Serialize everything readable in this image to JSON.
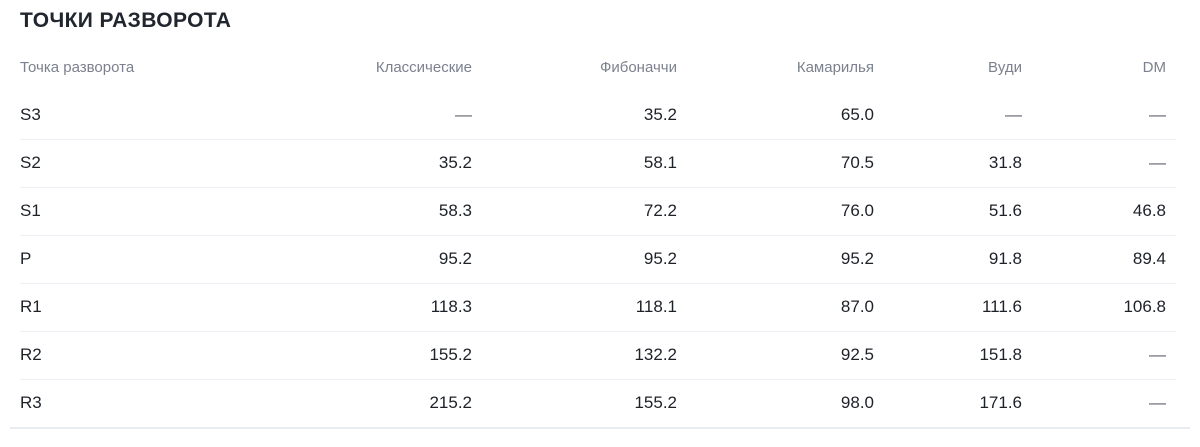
{
  "page": {
    "title": "ТОЧКИ РАЗВОРОТА"
  },
  "table": {
    "columns": [
      "Точка разворота",
      "Классические",
      "Фибоначчи",
      "Камарилья",
      "Вуди",
      "DM"
    ],
    "empty_marker": "—",
    "rows": [
      {
        "label": "S3",
        "values": [
          "—",
          "35.2",
          "65.0",
          "—",
          "—"
        ]
      },
      {
        "label": "S2",
        "values": [
          "35.2",
          "58.1",
          "70.5",
          "31.8",
          "—"
        ]
      },
      {
        "label": "S1",
        "values": [
          "58.3",
          "72.2",
          "76.0",
          "51.6",
          "46.8"
        ]
      },
      {
        "label": "P",
        "values": [
          "95.2",
          "95.2",
          "95.2",
          "91.8",
          "89.4"
        ]
      },
      {
        "label": "R1",
        "values": [
          "118.3",
          "118.1",
          "87.0",
          "111.6",
          "106.8"
        ]
      },
      {
        "label": "R2",
        "values": [
          "155.2",
          "132.2",
          "92.5",
          "151.8",
          "—"
        ]
      },
      {
        "label": "R3",
        "values": [
          "215.2",
          "155.2",
          "98.0",
          "171.6",
          "—"
        ]
      }
    ]
  },
  "colors": {
    "title_text": "#21252e",
    "header_text": "#7b818e",
    "cell_text": "#1d2128",
    "dash_text": "#5f646d",
    "row_divider": "#ededf4",
    "bottom_border": "#e9ebf2",
    "background": "#ffffff"
  }
}
